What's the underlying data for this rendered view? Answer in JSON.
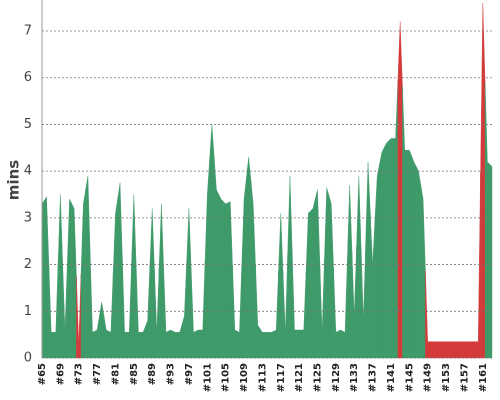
{
  "chart_data": {
    "type": "area",
    "ylabel": "mins",
    "categories": [
      "#65",
      null,
      null,
      null,
      "#69",
      null,
      null,
      null,
      "#73",
      null,
      null,
      null,
      "#77",
      null,
      null,
      null,
      "#81",
      null,
      null,
      null,
      "#85",
      null,
      null,
      null,
      "#89",
      null,
      null,
      null,
      "#93",
      null,
      null,
      null,
      "#97",
      null,
      null,
      null,
      "#101",
      null,
      null,
      null,
      "#105",
      null,
      null,
      null,
      "#109",
      null,
      null,
      null,
      "#113",
      null,
      null,
      null,
      "#117",
      null,
      null,
      null,
      "#121",
      null,
      null,
      null,
      "#125",
      null,
      null,
      null,
      "#129",
      null,
      null,
      null,
      "#133",
      null,
      null,
      null,
      "#137",
      null,
      null,
      null,
      "#141",
      null,
      null,
      null,
      "#145",
      null,
      null,
      null,
      "#149",
      null,
      null,
      null,
      "#153",
      null,
      null,
      null,
      "#157",
      null,
      null,
      null,
      "#161",
      null,
      null
    ],
    "values": [
      3.3,
      3.45,
      0.55,
      0.55,
      3.5,
      0.6,
      3.4,
      3.2,
      0.3,
      3.3,
      3.9,
      0.55,
      0.6,
      1.2,
      0.6,
      0.55,
      3.1,
      3.75,
      0.55,
      0.55,
      3.5,
      0.55,
      0.55,
      0.8,
      3.2,
      0.55,
      3.3,
      0.55,
      0.6,
      0.55,
      0.55,
      0.9,
      3.2,
      0.55,
      0.6,
      0.6,
      3.5,
      5.0,
      3.6,
      3.4,
      3.3,
      3.35,
      0.6,
      0.55,
      3.4,
      4.3,
      3.3,
      0.7,
      0.55,
      0.55,
      0.55,
      0.6,
      3.1,
      0.55,
      3.9,
      0.6,
      0.6,
      0.6,
      3.1,
      3.2,
      3.6,
      0.55,
      3.65,
      3.3,
      0.55,
      0.6,
      0.55,
      3.7,
      0.9,
      3.9,
      0.8,
      4.2,
      2.0,
      3.9,
      4.4,
      4.6,
      4.7,
      4.7,
      7.2,
      4.45,
      4.45,
      4.2,
      4.0,
      3.4,
      0.35,
      0.35,
      0.35,
      0.35,
      0.35,
      0.35,
      0.35,
      0.35,
      0.35,
      0.35,
      0.35,
      0.35,
      7.6,
      4.2,
      4.1
    ],
    "colors": [
      "#3f9a69",
      "#3f9a69",
      "#3f9a69",
      "#3f9a69",
      "#3f9a69",
      "#3f9a69",
      "#3f9a69",
      "#3f9a69",
      "#d33b3b",
      "#3f9a69",
      "#3f9a69",
      "#3f9a69",
      "#3f9a69",
      "#3f9a69",
      "#3f9a69",
      "#3f9a69",
      "#3f9a69",
      "#3f9a69",
      "#3f9a69",
      "#3f9a69",
      "#3f9a69",
      "#3f9a69",
      "#3f9a69",
      "#3f9a69",
      "#3f9a69",
      "#3f9a69",
      "#3f9a69",
      "#3f9a69",
      "#3f9a69",
      "#3f9a69",
      "#3f9a69",
      "#3f9a69",
      "#3f9a69",
      "#3f9a69",
      "#3f9a69",
      "#3f9a69",
      "#3f9a69",
      "#3f9a69",
      "#3f9a69",
      "#3f9a69",
      "#3f9a69",
      "#3f9a69",
      "#3f9a69",
      "#3f9a69",
      "#3f9a69",
      "#3f9a69",
      "#3f9a69",
      "#3f9a69",
      "#3f9a69",
      "#3f9a69",
      "#3f9a69",
      "#3f9a69",
      "#3f9a69",
      "#3f9a69",
      "#3f9a69",
      "#3f9a69",
      "#3f9a69",
      "#3f9a69",
      "#3f9a69",
      "#3f9a69",
      "#3f9a69",
      "#3f9a69",
      "#3f9a69",
      "#3f9a69",
      "#3f9a69",
      "#3f9a69",
      "#3f9a69",
      "#3f9a69",
      "#3f9a69",
      "#3f9a69",
      "#3f9a69",
      "#3f9a69",
      "#3f9a69",
      "#3f9a69",
      "#3f9a69",
      "#3f9a69",
      "#3f9a69",
      "#3f9a69",
      "#d33b3b",
      "#3f9a69",
      "#3f9a69",
      "#3f9a69",
      "#3f9a69",
      "#3f9a69",
      "#d33b3b",
      "#d33b3b",
      "#d33b3b",
      "#d33b3b",
      "#d33b3b",
      "#d33b3b",
      "#d33b3b",
      "#d33b3b",
      "#d33b3b",
      "#d33b3b",
      "#d33b3b",
      "#d33b3b",
      "#d33b3b",
      "#3f9a69",
      "#3f9a69"
    ],
    "ylim": [
      0,
      7.6
    ],
    "yticks": [
      0,
      1,
      2,
      3,
      4,
      5,
      6,
      7
    ],
    "grid": true
  }
}
